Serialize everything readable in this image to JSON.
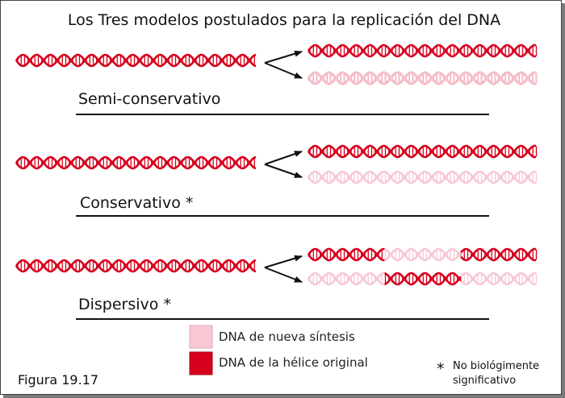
{
  "title": "Los Tres modelos postulados para la replicación del DNA",
  "models": [
    {
      "name": "Semi-conservativo",
      "products": [
        [
          "pink"
        ],
        [
          "red"
        ]
      ],
      "overlay": [
        [
          "red"
        ],
        [
          "pink"
        ]
      ]
    },
    {
      "name": "Conservativo *",
      "products": [
        [
          "red"
        ],
        [
          "pink"
        ]
      ]
    },
    {
      "name": "Dispersivo *",
      "products": [
        [
          "red",
          "pink",
          "red"
        ],
        [
          "pink",
          "red",
          "pink"
        ]
      ]
    }
  ],
  "legend": [
    {
      "label": "DNA de nueva síntesis",
      "color": "#f7c8d4"
    },
    {
      "label": "DNA de la hélice original",
      "color": "#d6001c"
    }
  ],
  "colors": {
    "red": "#d6001c",
    "pink": "#f7c8d4"
  },
  "figure_label": "Figura 19.17",
  "note": {
    "symbol": "*",
    "line1": "No biológimente",
    "line2": "significativo"
  }
}
